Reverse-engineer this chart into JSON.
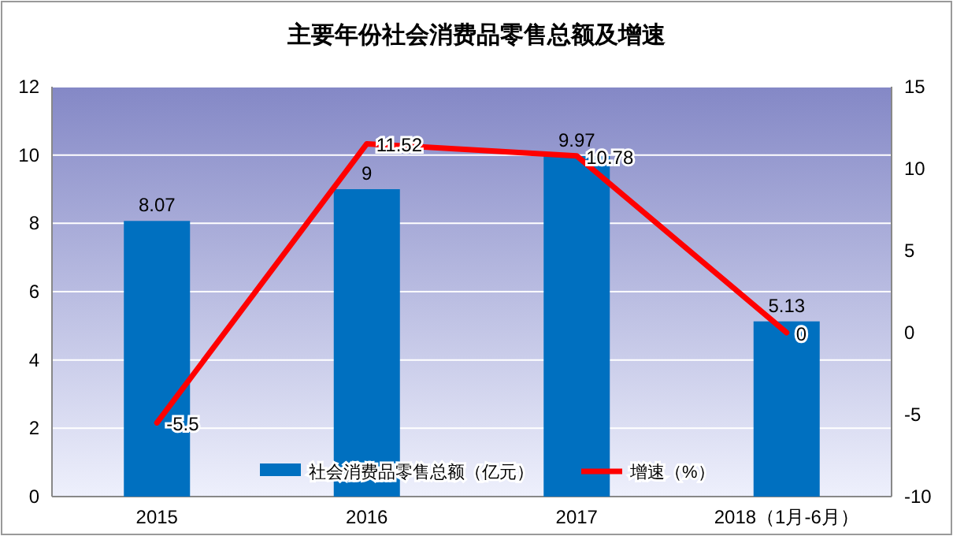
{
  "chart_data": {
    "type": "bar",
    "title": "主要年份社会消费品零售总额及增速",
    "categories": [
      "2015",
      "2016",
      "2017",
      "2018（1月-6月）"
    ],
    "series": [
      {
        "name": "社会消费品零售总额（亿元）",
        "type": "bar",
        "color": "#0070c0",
        "values": [
          8.07,
          9,
          9.97,
          5.13
        ]
      },
      {
        "name": "增速（%）",
        "type": "line",
        "axis": "y2",
        "color": "#ff0000",
        "values": [
          -5.5,
          11.52,
          10.78,
          0
        ]
      }
    ],
    "ylim": [
      0,
      12
    ],
    "yticks": [
      0,
      2,
      4,
      6,
      8,
      10,
      12
    ],
    "y2lim": [
      -10,
      15
    ],
    "y2ticks": [
      -10,
      -5,
      0,
      5,
      10,
      15
    ],
    "grid": "y",
    "legend": "bottom",
    "data_labels": true,
    "marker": "none"
  }
}
